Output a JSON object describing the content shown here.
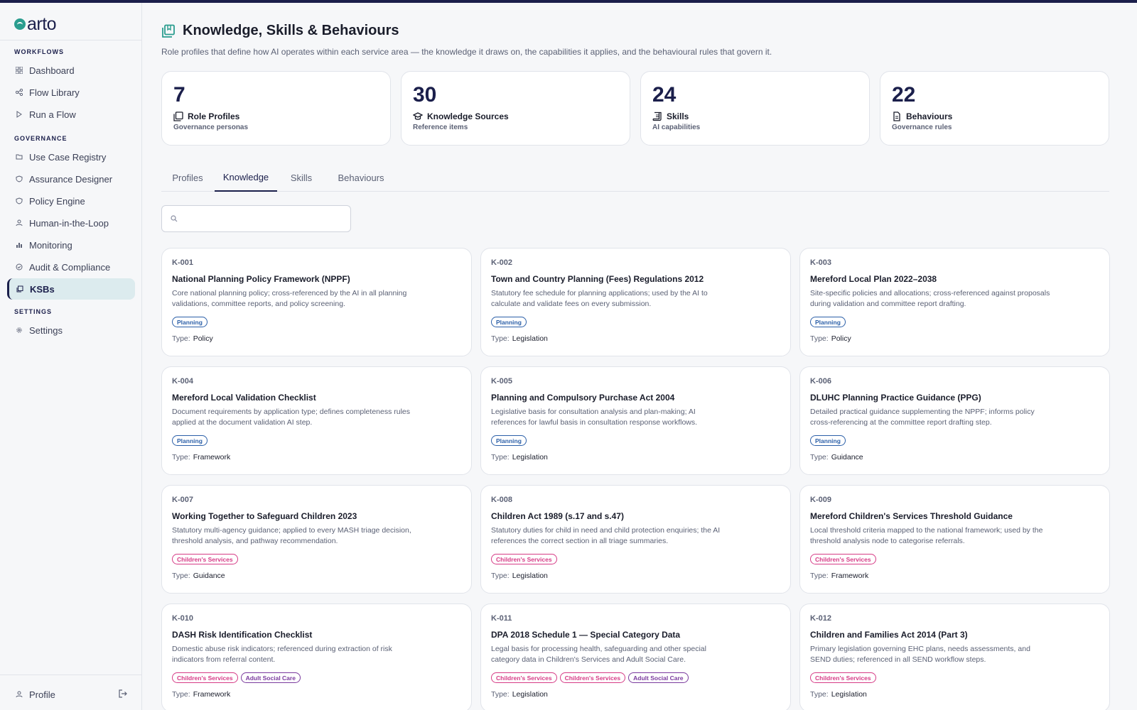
{
  "brand": {
    "name": "arto",
    "accent": "#2a9d8f",
    "navy": "#1b1f4b"
  },
  "nav": {
    "sections": [
      {
        "title": "WORKFLOWS",
        "items": [
          {
            "label": "Dashboard",
            "icon": "grid-icon"
          },
          {
            "label": "Flow Library",
            "icon": "flow-icon"
          },
          {
            "label": "Run a Flow",
            "icon": "play-icon"
          }
        ]
      },
      {
        "title": "GOVERNANCE",
        "items": [
          {
            "label": "Use Case Registry",
            "icon": "folder-icon"
          },
          {
            "label": "Assurance Designer",
            "icon": "shield-icon"
          },
          {
            "label": "Policy Engine",
            "icon": "shield-icon"
          },
          {
            "label": "Human-in-the-Loop",
            "icon": "user-icon"
          },
          {
            "label": "Monitoring",
            "icon": "bar-chart-icon"
          },
          {
            "label": "Audit & Compliance",
            "icon": "check-circle-icon"
          },
          {
            "label": "KSBs",
            "icon": "book-icon",
            "active": true
          }
        ]
      },
      {
        "title": "SETTINGS",
        "items": [
          {
            "label": "Settings",
            "icon": "gear-icon"
          }
        ]
      }
    ],
    "profile": "Profile"
  },
  "page": {
    "title": "Knowledge, Skills & Behaviours",
    "subtitle": "Role profiles that define how AI operates within each service area — the knowledge it draws on, the capabilities it applies, and the behavioural rules that govern it."
  },
  "stats": [
    {
      "value": "7",
      "label": "Role Profiles",
      "sub": "Governance personas",
      "icon": "book-icon"
    },
    {
      "value": "30",
      "label": "Knowledge Sources",
      "sub": "Reference items",
      "icon": "graduation-cap-icon"
    },
    {
      "value": "24",
      "label": "Skills",
      "sub": "AI capabilities",
      "icon": "scroll-icon"
    },
    {
      "value": "22",
      "label": "Behaviours",
      "sub": "Governance rules",
      "icon": "document-icon"
    }
  ],
  "tabs": [
    {
      "label": "Profiles"
    },
    {
      "label": "Knowledge",
      "active": true
    },
    {
      "label": "Skills"
    },
    {
      "label": "Behaviours"
    }
  ],
  "search": {
    "placeholder": "",
    "value": ""
  },
  "type_label": "Type:",
  "tag_colors": {
    "Planning": "#2b5fa8",
    "Children's Services": "#d63b86",
    "Adult Social Care": "#7a3a9e"
  },
  "knowledge": [
    {
      "id": "K-001",
      "title": "National Planning Policy Framework (NPPF)",
      "desc": "Core national planning policy; cross-referenced by the AI in all planning validations, committee reports, and policy screening.",
      "tags": [
        "Planning"
      ],
      "type": "Policy"
    },
    {
      "id": "K-002",
      "title": "Town and Country Planning (Fees) Regulations 2012",
      "desc": "Statutory fee schedule for planning applications; used by the AI to calculate and validate fees on every submission.",
      "tags": [
        "Planning"
      ],
      "type": "Legislation"
    },
    {
      "id": "K-003",
      "title": "Mereford Local Plan 2022–2038",
      "desc": "Site-specific policies and allocations; cross-referenced against proposals during validation and committee report drafting.",
      "tags": [
        "Planning"
      ],
      "type": "Policy"
    },
    {
      "id": "K-004",
      "title": "Mereford Local Validation Checklist",
      "desc": "Document requirements by application type; defines completeness rules applied at the document validation AI step.",
      "tags": [
        "Planning"
      ],
      "type": "Framework"
    },
    {
      "id": "K-005",
      "title": "Planning and Compulsory Purchase Act 2004",
      "desc": "Legislative basis for consultation analysis and plan-making; AI references for lawful basis in consultation response workflows.",
      "tags": [
        "Planning"
      ],
      "type": "Legislation"
    },
    {
      "id": "K-006",
      "title": "DLUHC Planning Practice Guidance (PPG)",
      "desc": "Detailed practical guidance supplementing the NPPF; informs policy cross-referencing at the committee report drafting step.",
      "tags": [
        "Planning"
      ],
      "type": "Guidance"
    },
    {
      "id": "K-007",
      "title": "Working Together to Safeguard Children 2023",
      "desc": "Statutory multi-agency guidance; applied to every MASH triage decision, threshold analysis, and pathway recommendation.",
      "tags": [
        "Children's Services"
      ],
      "type": "Guidance"
    },
    {
      "id": "K-008",
      "title": "Children Act 1989 (s.17 and s.47)",
      "desc": "Statutory duties for child in need and child protection enquiries; the AI references the correct section in all triage summaries.",
      "tags": [
        "Children's Services"
      ],
      "type": "Legislation"
    },
    {
      "id": "K-009",
      "title": "Mereford Children's Services Threshold Guidance",
      "desc": "Local threshold criteria mapped to the national framework; used by the threshold analysis node to categorise referrals.",
      "tags": [
        "Children's Services"
      ],
      "type": "Framework"
    },
    {
      "id": "K-010",
      "title": "DASH Risk Identification Checklist",
      "desc": "Domestic abuse risk indicators; referenced during extraction of risk indicators from referral content.",
      "tags": [
        "Children's Services",
        "Adult Social Care"
      ],
      "type": "Framework"
    },
    {
      "id": "K-011",
      "title": "DPA 2018 Schedule 1 — Special Category Data",
      "desc": "Legal basis for processing health, safeguarding and other special category data in Children's Services and Adult Social Care.",
      "tags": [
        "Children's Services",
        "Children's Services",
        "Adult Social Care"
      ],
      "type": "Legislation"
    },
    {
      "id": "K-012",
      "title": "Children and Families Act 2014 (Part 3)",
      "desc": "Primary legislation governing EHC plans, needs assessments, and SEND duties; referenced in all SEND workflow steps.",
      "tags": [
        "Children's Services"
      ],
      "type": "Legislation"
    }
  ]
}
